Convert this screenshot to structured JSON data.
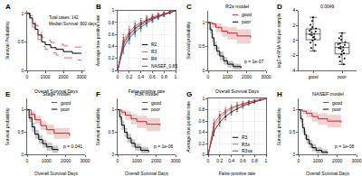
{
  "chart_data": [
    {
      "panel": "A",
      "type": "step",
      "x_label": "Overall Survival Days",
      "y_label": "Survival Probability",
      "annotations": [
        "Total cases: 142",
        "Median Survival: 800 days"
      ],
      "x": [
        0,
        150,
        300,
        450,
        600,
        800,
        1000,
        1300,
        1600,
        2000,
        2500,
        3000
      ],
      "values": [
        1,
        0.92,
        0.82,
        0.72,
        0.62,
        0.5,
        0.45,
        0.4,
        0.37,
        0.33,
        0.3,
        0.3
      ],
      "lower": [
        1,
        0.87,
        0.76,
        0.65,
        0.54,
        0.42,
        0.37,
        0.31,
        0.27,
        0.22,
        0.18,
        0.18
      ],
      "upper": [
        1,
        0.96,
        0.88,
        0.79,
        0.7,
        0.58,
        0.53,
        0.49,
        0.46,
        0.43,
        0.41,
        0.41
      ],
      "color": "#000000",
      "xlim": [
        0,
        3200
      ],
      "xticks": [
        0,
        1000,
        2000,
        3000
      ],
      "ylim": [
        0,
        1.05
      ],
      "yticks": [
        0,
        0.5,
        1
      ],
      "grid": false
    },
    {
      "panel": "B",
      "type": "line",
      "x_label": "False positive rate",
      "y_label": "Average true positive rate",
      "x": [
        0,
        0.1,
        0.2,
        0.3,
        0.4,
        0.5,
        0.6,
        0.7,
        0.8,
        0.9,
        1
      ],
      "series": [
        {
          "name": "R2",
          "color": "#000000",
          "values": [
            0,
            0.45,
            0.6,
            0.7,
            0.77,
            0.83,
            0.87,
            0.91,
            0.94,
            0.97,
            1
          ],
          "error": [
            0,
            0.1,
            0.09,
            0.08,
            0.07,
            0.06,
            0.05,
            0.04,
            0.03,
            0.02,
            0
          ]
        },
        {
          "name": "R3",
          "color": "#888888",
          "values": [
            0,
            0.4,
            0.56,
            0.67,
            0.75,
            0.81,
            0.86,
            0.9,
            0.93,
            0.97,
            1
          ],
          "error": [
            0,
            0.1,
            0.09,
            0.08,
            0.07,
            0.06,
            0.05,
            0.04,
            0.03,
            0.02,
            0
          ]
        },
        {
          "name": "R4",
          "color": "#1f4e9e",
          "values": [
            0,
            0.38,
            0.53,
            0.64,
            0.72,
            0.79,
            0.85,
            0.89,
            0.93,
            0.96,
            1
          ],
          "error": [
            0,
            0.1,
            0.09,
            0.08,
            0.07,
            0.06,
            0.05,
            0.04,
            0.03,
            0.02,
            0
          ]
        },
        {
          "name": "NASEF_0.85",
          "color": "#d62728",
          "values": [
            0,
            0.5,
            0.64,
            0.74,
            0.8,
            0.85,
            0.89,
            0.92,
            0.95,
            0.98,
            1
          ],
          "error": [
            0,
            0.1,
            0.09,
            0.08,
            0.07,
            0.06,
            0.05,
            0.04,
            0.03,
            0.02,
            0
          ]
        }
      ],
      "legend": "lower right",
      "xlim": [
        0,
        1
      ],
      "xticks": [
        0,
        0.2,
        0.4,
        0.6,
        0.8,
        1
      ],
      "ylim": [
        0,
        1
      ],
      "yticks": [
        0,
        0.2,
        0.4,
        0.6,
        0.8,
        1
      ],
      "grid": true
    },
    {
      "panel": "C",
      "type": "step",
      "title": "R2s model",
      "x_label": "Overall Survival Days",
      "y_label": "Survival probability",
      "annotations": [
        "p = 1e-07"
      ],
      "series": [
        {
          "name": "good",
          "color": "#c0282d",
          "x": [
            0,
            200,
            400,
            700,
            1000,
            1500,
            2200
          ],
          "values": [
            1,
            0.97,
            0.9,
            0.82,
            0.78,
            0.72,
            0.68
          ],
          "lower": [
            1,
            0.9,
            0.8,
            0.7,
            0.64,
            0.56,
            0.5
          ],
          "upper": [
            1,
            1,
            0.98,
            0.92,
            0.9,
            0.86,
            0.84
          ]
        },
        {
          "name": "poor",
          "color": "#000000",
          "x": [
            0,
            100,
            200,
            300,
            450,
            600,
            800,
            1000,
            1300,
            1700
          ],
          "values": [
            1,
            0.85,
            0.68,
            0.52,
            0.4,
            0.3,
            0.2,
            0.13,
            0.08,
            0.05
          ],
          "lower": [
            1,
            0.78,
            0.59,
            0.43,
            0.31,
            0.21,
            0.12,
            0.06,
            0.02,
            0
          ],
          "upper": [
            1,
            0.92,
            0.77,
            0.61,
            0.49,
            0.39,
            0.28,
            0.2,
            0.14,
            0.1
          ]
        }
      ],
      "legend": "upper right",
      "xlim": [
        0,
        3000
      ],
      "xticks": [
        0,
        1000,
        2000,
        3000
      ],
      "ylim": [
        0,
        1.25
      ],
      "yticks": [
        0,
        0.5,
        1
      ],
      "grid": false
    },
    {
      "panel": "D",
      "type": "box",
      "y_label": "log2 mRNA fold per sample",
      "annotations": [
        "0.0049"
      ],
      "categories": [
        "good",
        "poor"
      ],
      "values": [
        [
          0.5,
          1.2,
          -0.3,
          0.8,
          2.1,
          1.5,
          -1.0,
          0.2,
          1.8,
          0.9,
          2.6,
          -0.6,
          1.1,
          0.4,
          1.6,
          3.1,
          0.0,
          1.3,
          -1.4,
          0.7
        ],
        [
          -0.8,
          -1.5,
          0.3,
          -2.2,
          -0.4,
          -1.1,
          0.6,
          -2.8,
          -0.9,
          -1.7,
          0.1,
          -0.2,
          -1.3,
          -3.2,
          -0.6,
          1.0,
          -1.9,
          -0.5,
          -2.4,
          -1.0
        ]
      ],
      "color": "#000000",
      "ylim": [
        -4,
        4
      ],
      "yticks": [
        -4,
        -2,
        0,
        2,
        4
      ],
      "grid": false
    },
    {
      "panel": "E",
      "type": "step",
      "title": "Stage model",
      "x_label": "Overall Survival Days",
      "y_label": "Survival probability",
      "annotations": [
        "p = 0.041"
      ],
      "series": [
        {
          "name": "good",
          "color": "#c0282d",
          "x": [
            0,
            200,
            400,
            700,
            1000,
            1400,
            2200
          ],
          "values": [
            1,
            0.9,
            0.78,
            0.65,
            0.56,
            0.48,
            0.42
          ],
          "lower": [
            1,
            0.83,
            0.69,
            0.55,
            0.45,
            0.36,
            0.3
          ],
          "upper": [
            1,
            0.97,
            0.87,
            0.75,
            0.67,
            0.6,
            0.55
          ]
        },
        {
          "name": "poor",
          "color": "#000000",
          "x": [
            0,
            100,
            250,
            400,
            600,
            800,
            1000,
            1300,
            1600
          ],
          "values": [
            1,
            0.82,
            0.62,
            0.46,
            0.34,
            0.25,
            0.18,
            0.12,
            0.1
          ],
          "lower": [
            1,
            0.73,
            0.52,
            0.36,
            0.24,
            0.16,
            0.09,
            0.04,
            0.02
          ],
          "upper": [
            1,
            0.91,
            0.72,
            0.56,
            0.44,
            0.34,
            0.27,
            0.2,
            0.18
          ]
        }
      ],
      "legend": "upper right",
      "xlim": [
        0,
        3000
      ],
      "xticks": [
        0,
        1000,
        2000,
        3000
      ],
      "ylim": [
        0,
        1.25
      ],
      "yticks": [
        0,
        0.5,
        1
      ],
      "grid": false
    },
    {
      "panel": "F",
      "type": "step",
      "title": "R3s model",
      "x_label": "Overall Survival Days",
      "y_label": "Survival probability",
      "annotations": [
        "p = 1e-06"
      ],
      "series": [
        {
          "name": "good",
          "color": "#c0282d",
          "x": [
            0,
            200,
            400,
            700,
            1000,
            1500,
            2200
          ],
          "values": [
            1,
            0.95,
            0.88,
            0.8,
            0.74,
            0.68,
            0.65
          ],
          "lower": [
            1,
            0.88,
            0.78,
            0.68,
            0.6,
            0.53,
            0.49
          ],
          "upper": [
            1,
            1,
            0.97,
            0.91,
            0.87,
            0.82,
            0.8
          ]
        },
        {
          "name": "poor",
          "color": "#000000",
          "x": [
            0,
            100,
            200,
            350,
            500,
            700,
            900,
            1200,
            1600
          ],
          "values": [
            1,
            0.84,
            0.66,
            0.5,
            0.37,
            0.26,
            0.17,
            0.1,
            0.06
          ],
          "lower": [
            1,
            0.76,
            0.56,
            0.4,
            0.27,
            0.17,
            0.09,
            0.03,
            0
          ],
          "upper": [
            1,
            0.92,
            0.76,
            0.6,
            0.47,
            0.35,
            0.25,
            0.17,
            0.13
          ]
        }
      ],
      "legend": "upper right",
      "xlim": [
        0,
        3000
      ],
      "xticks": [
        0,
        1000,
        2000,
        3000
      ],
      "ylim": [
        0,
        1.25
      ],
      "yticks": [
        0,
        0.5,
        1
      ],
      "grid": false
    },
    {
      "panel": "G",
      "type": "line",
      "x_label": "False positive rate",
      "y_label": "Average true positive rate",
      "x": [
        0,
        0.1,
        0.2,
        0.3,
        0.4,
        0.5,
        0.6,
        0.7,
        0.8,
        0.9,
        1
      ],
      "series": [
        {
          "name": "R3",
          "color": "#000000",
          "values": [
            0,
            0.42,
            0.58,
            0.68,
            0.76,
            0.82,
            0.87,
            0.91,
            0.94,
            0.97,
            1
          ],
          "error": [
            0,
            0.08,
            0.07,
            0.06,
            0.05,
            0.05,
            0.04,
            0.03,
            0.02,
            0.01,
            0
          ]
        },
        {
          "name": "R3s",
          "color": "#888888",
          "values": [
            0,
            0.5,
            0.65,
            0.75,
            0.81,
            0.86,
            0.9,
            0.93,
            0.96,
            0.98,
            1
          ],
          "error": [
            0,
            0.08,
            0.07,
            0.06,
            0.05,
            0.05,
            0.04,
            0.03,
            0.02,
            0.01,
            0
          ]
        },
        {
          "name": "R3sa",
          "color": "#d62728",
          "values": [
            0,
            0.55,
            0.7,
            0.78,
            0.84,
            0.88,
            0.91,
            0.94,
            0.96,
            0.98,
            1
          ],
          "error": [
            0,
            0.08,
            0.07,
            0.06,
            0.05,
            0.05,
            0.04,
            0.03,
            0.02,
            0.01,
            0
          ]
        }
      ],
      "legend": "lower right",
      "xlim": [
        0,
        1
      ],
      "xticks": [
        0,
        0.2,
        0.4,
        0.6,
        0.8,
        1
      ],
      "ylim": [
        0,
        1
      ],
      "yticks": [
        0,
        0.2,
        0.4,
        0.6,
        0.8,
        1
      ],
      "grid": true
    },
    {
      "panel": "H",
      "type": "step",
      "title": "NASEF model",
      "x_label": "Overall Survival Days",
      "y_label": "Survival probability",
      "annotations": [
        "p = 1e-08"
      ],
      "series": [
        {
          "name": "good",
          "color": "#c0282d",
          "x": [
            0,
            200,
            400,
            700,
            1000,
            1500,
            2200
          ],
          "values": [
            1,
            0.97,
            0.92,
            0.85,
            0.8,
            0.75,
            0.72
          ],
          "lower": [
            1,
            0.91,
            0.83,
            0.74,
            0.67,
            0.61,
            0.57
          ],
          "upper": [
            1,
            1,
            1,
            0.95,
            0.92,
            0.89,
            0.87
          ]
        },
        {
          "name": "poor",
          "color": "#000000",
          "x": [
            0,
            100,
            200,
            300,
            400,
            550,
            700,
            900,
            1200,
            1500
          ],
          "values": [
            1,
            0.8,
            0.6,
            0.45,
            0.34,
            0.24,
            0.16,
            0.1,
            0.06,
            0.04
          ],
          "lower": [
            1,
            0.72,
            0.5,
            0.35,
            0.24,
            0.15,
            0.08,
            0.03,
            0,
            0
          ],
          "upper": [
            1,
            0.88,
            0.7,
            0.55,
            0.44,
            0.33,
            0.24,
            0.17,
            0.12,
            0.1
          ]
        }
      ],
      "legend": "upper right",
      "xlim": [
        0,
        3000
      ],
      "xticks": [
        0,
        1000,
        2000,
        3000
      ],
      "ylim": [
        0,
        1.25
      ],
      "yticks": [
        0,
        0.5,
        1
      ],
      "grid": false
    }
  ]
}
